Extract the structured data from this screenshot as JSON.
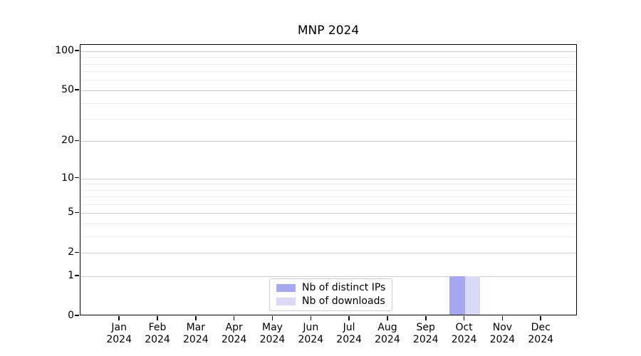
{
  "chart_data": {
    "type": "bar",
    "title": "MNP 2024",
    "x": [
      "Jan",
      "Feb",
      "Mar",
      "Apr",
      "May",
      "Jun",
      "Jul",
      "Aug",
      "Sep",
      "Oct",
      "Nov",
      "Dec"
    ],
    "x_sub": "2024",
    "series": [
      {
        "name": "Nb of distinct IPs",
        "color": "#a8a8f2",
        "values": [
          0,
          0,
          0,
          0,
          0,
          0,
          0,
          0,
          0,
          1,
          0,
          0
        ]
      },
      {
        "name": "Nb of downloads",
        "color": "#dadaf7",
        "values": [
          0,
          0,
          0,
          0,
          0,
          0,
          0,
          0,
          0,
          1,
          0,
          0
        ]
      }
    ],
    "y_scale": "log10(1+y)",
    "y_major_ticks": [
      0,
      1,
      2,
      5,
      10,
      20,
      50,
      100
    ],
    "y_minor_ticks": [
      3,
      4,
      6,
      7,
      8,
      9,
      30,
      40,
      60,
      70,
      80,
      90
    ],
    "ylim": [
      0,
      110
    ],
    "grid": "horizontal",
    "legend_position": "lower-center"
  },
  "colors": {
    "grid_major": "#cbcbcb",
    "grid_minor": "#eaeaea",
    "axis": "#000000",
    "background": "#ffffff"
  }
}
